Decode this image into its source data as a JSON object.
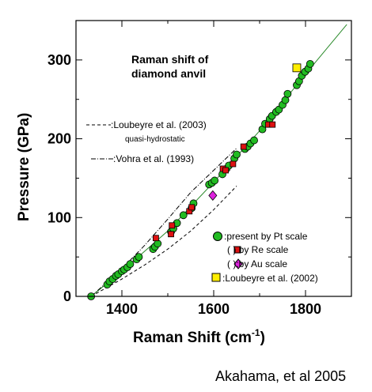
{
  "credit": "Akahama, et al 2005",
  "chart_data": {
    "type": "scatter",
    "title_lines": [
      "Raman shift of",
      "diamond anvil"
    ],
    "xlabel": "Raman Shift  (cm",
    "xlabel_sup": "-1",
    "xlabel_close": ")",
    "ylabel": "Pressure  (GPa)",
    "xlim": [
      1300,
      1900
    ],
    "ylim": [
      0,
      350
    ],
    "x_ticks": [
      1400,
      1600,
      1800
    ],
    "y_ticks": [
      0,
      100,
      200,
      300
    ],
    "x_tick_labels": [
      "1400",
      "1600",
      "1800"
    ],
    "y_tick_labels": [
      "0",
      "100",
      "200",
      "300"
    ],
    "grid": false,
    "legend_entries": [
      {
        "label": ":present by Pt scale",
        "marker": "circle",
        "color": "#22bb22"
      },
      {
        "label": "(   ) by Re scale",
        "marker": "square",
        "color": "#dd1111"
      },
      {
        "label": "(   ):by Au scale",
        "marker": "diamond",
        "color": "#dd22dd"
      },
      {
        "label": ":Loubeyre et al. (2002)",
        "marker": "square",
        "color": "#ffee00"
      }
    ],
    "line_legend": [
      {
        "label": ":Loubeyre et al. (2003)",
        "sublabel": "quasi-hydrostatic",
        "style": "dashed"
      },
      {
        "label": ":Vohra et al. (1993)",
        "style": "dashdot"
      }
    ],
    "series": [
      {
        "name": "present by Pt scale",
        "marker": "circle",
        "color": "#22bb22",
        "x": [
          1333,
          1368,
          1373,
          1380,
          1387,
          1392,
          1400,
          1405,
          1412,
          1418,
          1432,
          1437,
          1468,
          1472,
          1478,
          1507,
          1512,
          1520,
          1534,
          1552,
          1556,
          1590,
          1596,
          1602,
          1619,
          1628,
          1633,
          1645,
          1650,
          1668,
          1674,
          1680,
          1688,
          1706,
          1712,
          1722,
          1727,
          1736,
          1742,
          1750,
          1756,
          1761,
          1781,
          1786,
          1792,
          1799,
          1806,
          1810
        ],
        "y": [
          0,
          15,
          19,
          22,
          26,
          28,
          32,
          34,
          37,
          41,
          47,
          50,
          60,
          63,
          67,
          82,
          86,
          93,
          103,
          112,
          118,
          142,
          144,
          147,
          155,
          162,
          166,
          175,
          180,
          187,
          190,
          194,
          198,
          212,
          219,
          225,
          229,
          234,
          237,
          243,
          249,
          257,
          268,
          273,
          280,
          285,
          289,
          295
        ]
      },
      {
        "name": "by Re scale",
        "marker": "square",
        "color": "#dd1111",
        "x": [
          1474,
          1507,
          1509,
          1547,
          1552,
          1620,
          1626,
          1642,
          1665,
          1719,
          1728
        ],
        "y": [
          74,
          79,
          90,
          108,
          113,
          162,
          160,
          168,
          190,
          218,
          218
        ]
      },
      {
        "name": "by Au scale",
        "marker": "diamond",
        "color": "#dd22dd",
        "x": [
          1598
        ],
        "y": [
          128
        ]
      },
      {
        "name": "Loubeyre et al. (2002)",
        "marker": "square",
        "color": "#ffee00",
        "x": [
          1781
        ],
        "y": [
          290
        ]
      }
    ],
    "lines": [
      {
        "name": "Pt fit",
        "style": "solid",
        "x": [
          1333,
          1400,
          1500,
          1600,
          1700,
          1800,
          1890
        ],
        "y": [
          0,
          32,
          83,
          145,
          210,
          282,
          345
        ]
      },
      {
        "name": "Loubeyre et al. (2003)",
        "style": "dashed",
        "x": [
          1333,
          1400,
          1450,
          1500,
          1550,
          1600,
          1650
        ],
        "y": [
          0,
          22,
          40,
          60,
          83,
          110,
          140
        ]
      },
      {
        "name": "Vohra et al. (1993)",
        "style": "dashdot",
        "x": [
          1333,
          1400,
          1450,
          1500,
          1550,
          1600,
          1650
        ],
        "y": [
          0,
          35,
          65,
          98,
          132,
          160,
          188
        ]
      }
    ]
  }
}
